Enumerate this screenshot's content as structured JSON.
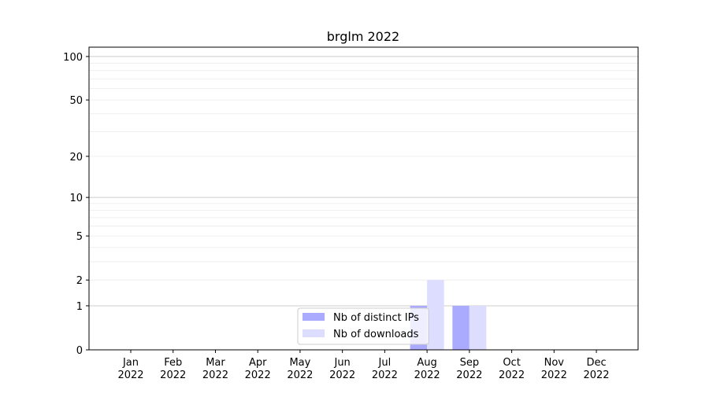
{
  "chart_data": {
    "type": "bar",
    "title": "brglm 2022",
    "xlabel": "",
    "ylabel": "",
    "yscale": "symlog",
    "ylim": [
      0,
      116
    ],
    "grid": true,
    "legend_position": "lower-center",
    "categories": [
      "Jan\n2022",
      "Feb\n2022",
      "Mar\n2022",
      "Apr\n2022",
      "May\n2022",
      "Jun\n2022",
      "Jul\n2022",
      "Aug\n2022",
      "Sep\n2022",
      "Oct\n2022",
      "Nov\n2022",
      "Dec\n2022"
    ],
    "y_ticks": [
      0,
      1,
      2,
      5,
      10,
      20,
      50,
      100
    ],
    "series": [
      {
        "name": "Nb of distinct IPs",
        "color": "#aaaaff",
        "values": [
          0,
          0,
          0,
          0,
          0,
          0,
          0,
          1,
          1,
          0,
          0,
          0
        ]
      },
      {
        "name": "Nb of downloads",
        "color": "#ddddff",
        "values": [
          0,
          0,
          0,
          0,
          0,
          0,
          0,
          2,
          1,
          0,
          0,
          0
        ]
      }
    ]
  }
}
